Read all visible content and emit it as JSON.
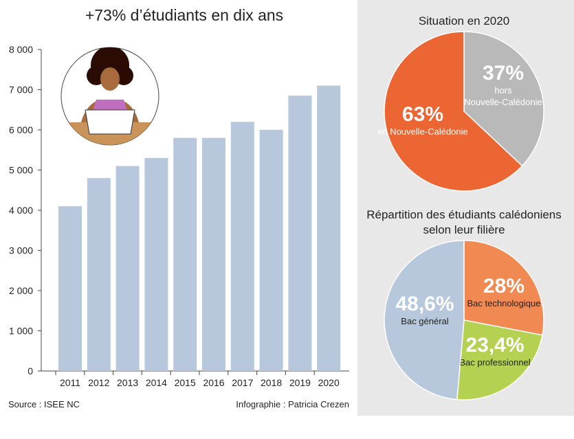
{
  "chart_data": [
    {
      "type": "bar",
      "title": "+73% d’étudiants en dix ans",
      "categories": [
        "2011",
        "2012",
        "2013",
        "2014",
        "2015",
        "2016",
        "2017",
        "2018",
        "2019",
        "2020"
      ],
      "values": [
        4100,
        4800,
        5100,
        5300,
        5800,
        5800,
        6200,
        6000,
        6850,
        7100
      ],
      "yticks": [
        "0",
        "1 000",
        "2 000",
        "3 000",
        "4 000",
        "5 000",
        "6 000",
        "7 000",
        "8 000"
      ],
      "ylim": [
        0,
        8000
      ],
      "xlabel": "",
      "ylabel": "",
      "color": "#b8c8dc"
    },
    {
      "type": "pie",
      "title": "Situation en 2020",
      "slices": [
        {
          "pct": "37%",
          "label1": "hors",
          "label2": "Nouvelle-Calédonie",
          "value": 37,
          "color": "#b9b9b9"
        },
        {
          "pct": "63%",
          "label1": "en Nouvelle-Calédonie",
          "label2": "",
          "value": 63,
          "color": "#ec6633"
        }
      ]
    },
    {
      "type": "pie",
      "title": "Répartition des étudiants calédoniens",
      "title2": "selon leur filière",
      "slices": [
        {
          "pct": "28%",
          "label1": "Bac technologique",
          "value": 28,
          "color": "#f08a52"
        },
        {
          "pct": "23,4%",
          "label1": "Bac professionnel",
          "value": 23.4,
          "color": "#b5d152"
        },
        {
          "pct": "48,6%",
          "label1": "Bac général",
          "value": 48.6,
          "color": "#b8c8dc"
        }
      ]
    }
  ],
  "footer": {
    "source": "Source : ISEE NC",
    "credit": "Infographie : Patricia Crezen"
  }
}
